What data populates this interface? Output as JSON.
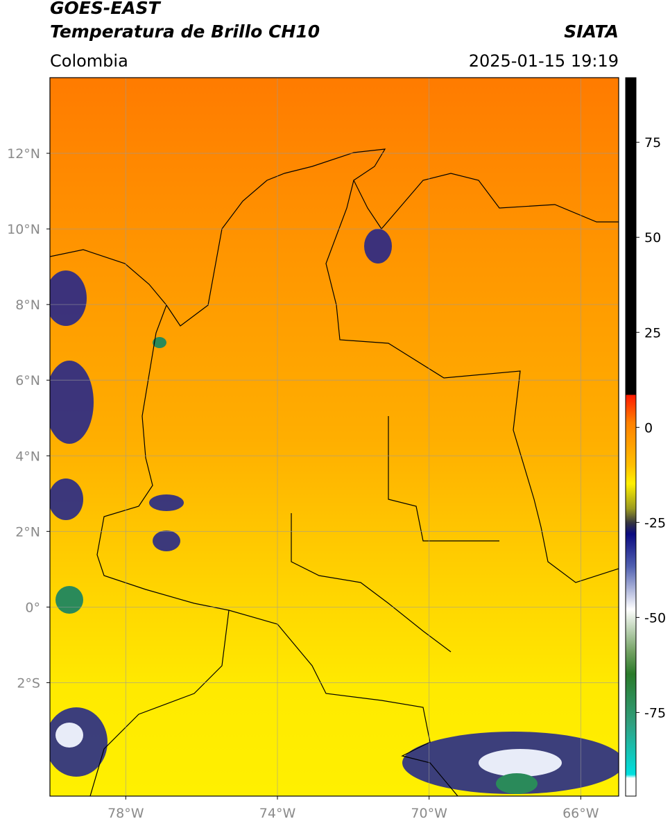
{
  "header": {
    "title": "GOES-EAST",
    "subtitle": "Temperatura de Brillo CH10",
    "source": "SIATA",
    "region": "Colombia",
    "datetime": "2025-01-15 19:19"
  },
  "map": {
    "lonlim": [
      -80,
      -65
    ],
    "latlim": [
      -5,
      14
    ],
    "grid": true,
    "lonticks": [
      {
        "value": -78,
        "label": "78°W"
      },
      {
        "value": -74,
        "label": "74°W"
      },
      {
        "value": -70,
        "label": "70°W"
      },
      {
        "value": -66,
        "label": "66°W"
      }
    ],
    "latticks": [
      {
        "value": 12,
        "label": "12°N"
      },
      {
        "value": 10,
        "label": "10°N"
      },
      {
        "value": 8,
        "label": "8°N"
      },
      {
        "value": 6,
        "label": "6°N"
      },
      {
        "value": 4,
        "label": "4°N"
      },
      {
        "value": 2,
        "label": "2°N"
      },
      {
        "value": 0,
        "label": "0°"
      },
      {
        "value": -2,
        "label": "2°S"
      }
    ]
  },
  "colorbar": {
    "lim": [
      -97,
      92
    ],
    "ticks": [
      75,
      50,
      25,
      0,
      -25,
      -50,
      -75
    ]
  }
}
